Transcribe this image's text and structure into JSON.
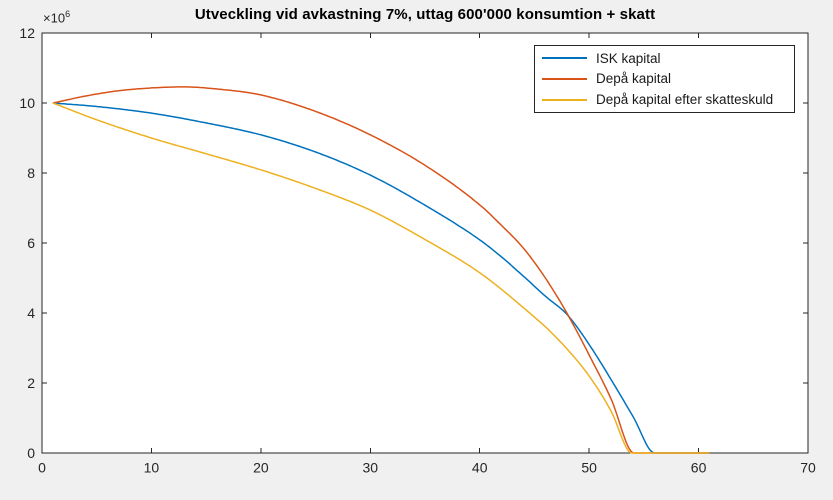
{
  "figure": {
    "background_color": "#f0f0f0",
    "plot_background_color": "#ffffff",
    "axis_color": "#262626",
    "title_color": "#000000"
  },
  "chart_data": {
    "type": "line",
    "title": "Utveckling vid avkastning 7%, uttag 600'000 konsumtion + skatt",
    "xlabel": "",
    "ylabel": "",
    "units_note": "y values in millions (axis exponent x10^6)",
    "xlim": [
      0,
      70
    ],
    "ylim_millions": [
      0,
      12
    ],
    "xticks": [
      0,
      10,
      20,
      30,
      40,
      50,
      60,
      70
    ],
    "yticks_millions": [
      0,
      2,
      4,
      6,
      8,
      10,
      12
    ],
    "y_axis_exponent": {
      "base": "×10",
      "power": "6"
    },
    "grid": false,
    "legend_position": "northeast",
    "series": [
      {
        "name": "ISK kapital",
        "color": "#0072BD",
        "points_x_year_y_millions": [
          [
            1,
            10
          ],
          [
            5,
            9.9
          ],
          [
            10,
            9.71
          ],
          [
            15,
            9.43
          ],
          [
            20,
            9.09
          ],
          [
            25,
            8.6
          ],
          [
            30,
            7.94
          ],
          [
            35,
            7.08
          ],
          [
            40,
            6.09
          ],
          [
            42,
            5.6
          ],
          [
            44,
            5.05
          ],
          [
            46,
            4.48
          ],
          [
            48,
            3.95
          ],
          [
            50,
            3.1
          ],
          [
            52,
            2.1
          ],
          [
            54,
            1.05
          ],
          [
            56,
            0
          ],
          [
            61,
            0
          ]
        ]
      },
      {
        "name": "Depå kapital",
        "color": "#D95319",
        "points_x_year_y_millions": [
          [
            1,
            10
          ],
          [
            4,
            10.2
          ],
          [
            7,
            10.35
          ],
          [
            10,
            10.43
          ],
          [
            13,
            10.46
          ],
          [
            16,
            10.4
          ],
          [
            20,
            10.23
          ],
          [
            25,
            9.76
          ],
          [
            30,
            9.09
          ],
          [
            35,
            8.22
          ],
          [
            40,
            7.09
          ],
          [
            42,
            6.5
          ],
          [
            44,
            5.85
          ],
          [
            46,
            5.0
          ],
          [
            48,
            3.98
          ],
          [
            50,
            2.8
          ],
          [
            52,
            1.55
          ],
          [
            54.1,
            0
          ],
          [
            61,
            0
          ]
        ]
      },
      {
        "name": "Depå kapital efter skatteskuld",
        "color": "#EDB120",
        "points_x_year_y_millions": [
          [
            1,
            10
          ],
          [
            5,
            9.52
          ],
          [
            10,
            9.0
          ],
          [
            15,
            8.55
          ],
          [
            20,
            8.09
          ],
          [
            25,
            7.56
          ],
          [
            30,
            6.94
          ],
          [
            35,
            6.1
          ],
          [
            40,
            5.15
          ],
          [
            44,
            4.15
          ],
          [
            47,
            3.3
          ],
          [
            50,
            2.2
          ],
          [
            52,
            1.2
          ],
          [
            53.9,
            0
          ],
          [
            61,
            0
          ]
        ]
      }
    ]
  }
}
